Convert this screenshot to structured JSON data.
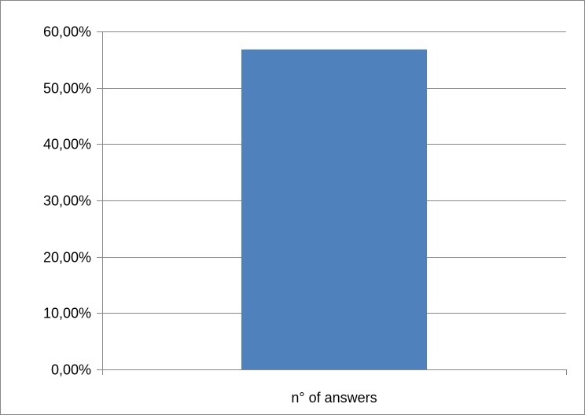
{
  "chart_data": {
    "type": "bar",
    "title": "",
    "xlabel": "",
    "ylabel": "",
    "categories": [
      "n° of answers"
    ],
    "values": [
      0.568
    ],
    "ylim": [
      0,
      0.6
    ],
    "y_ticks": [
      0,
      0.1,
      0.2,
      0.3,
      0.4,
      0.5,
      0.6
    ],
    "y_tick_labels": [
      "0,00%",
      "10,00%",
      "20,00%",
      "30,00%",
      "40,00%",
      "50,00%",
      "60,00%"
    ],
    "grid": true,
    "legend": "none",
    "bar_color": "#4f81bd",
    "gridline_color": "#878787",
    "border_color": "#878787"
  }
}
